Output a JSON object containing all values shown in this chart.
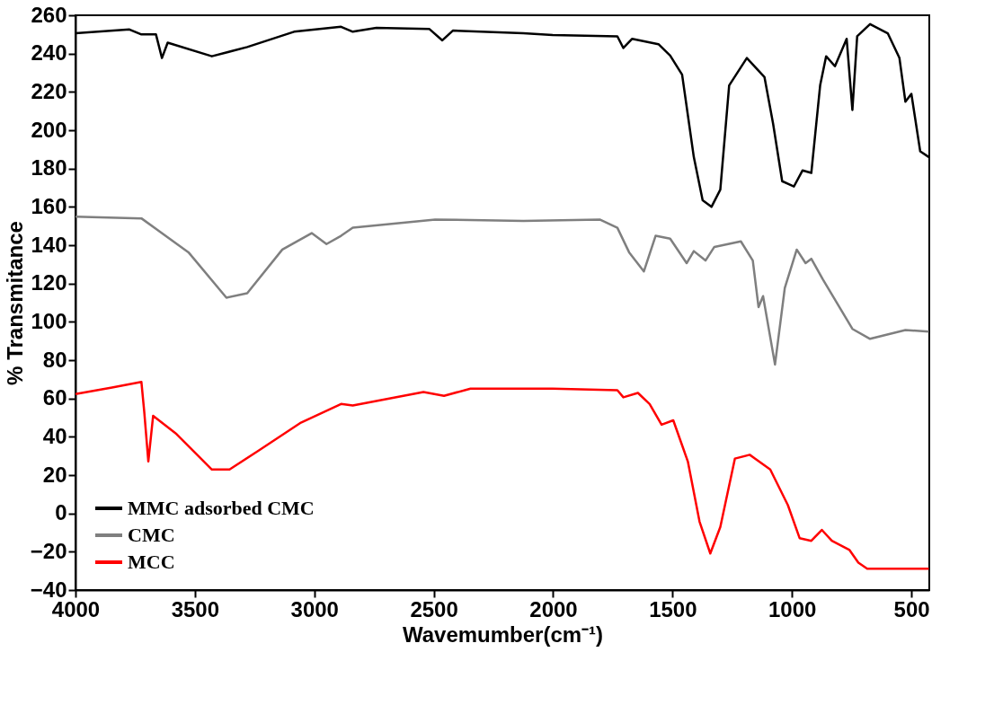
{
  "chart_data": {
    "type": "line",
    "xlabel": "Wavemumber(cm⁻¹)",
    "ylabel": "% Transmitance",
    "xlim": [
      4000,
      425
    ],
    "xticks": [
      4000,
      3500,
      3000,
      2500,
      2000,
      1500,
      1000,
      500
    ],
    "ylim": [
      -40,
      260
    ],
    "yticks": [
      -40,
      -20,
      0,
      20,
      40,
      60,
      80,
      100,
      120,
      140,
      160,
      180,
      200,
      220,
      240,
      260
    ],
    "grid": false,
    "legend": "bottom left",
    "line_style": "solid",
    "marker": "none",
    "series": [
      {
        "name": "MMC adsorbed CMC",
        "color": "#000000",
        "x": [
          4000,
          3774,
          3724,
          3663,
          3638,
          3614,
          3429,
          3281,
          3085,
          2888,
          2839,
          2740,
          2519,
          2464,
          2420,
          2125,
          2002,
          1731,
          1706,
          1669,
          1559,
          1510,
          1460,
          1411,
          1374,
          1337,
          1300,
          1263,
          1189,
          1115,
          1079,
          1041,
          1017,
          992,
          956,
          919,
          882,
          857,
          820,
          771,
          747,
          727,
          673,
          599,
          550,
          525,
          500,
          463,
          427
        ],
        "values": [
          250.6,
          252.6,
          250,
          250,
          237.7,
          245.7,
          238.6,
          243.4,
          251.4,
          254,
          251.4,
          253.4,
          252.9,
          246.9,
          252,
          250.6,
          249.7,
          249,
          242.9,
          247.7,
          244.9,
          239,
          229,
          186,
          163.4,
          160,
          169,
          223.4,
          237.7,
          227.7,
          203.4,
          173.4,
          172,
          170.6,
          179,
          177.7,
          223.4,
          238.6,
          233.4,
          247.7,
          210.6,
          249,
          255.4,
          250.6,
          237.7,
          214.9,
          219,
          189,
          186
        ]
      },
      {
        "name": "CMC",
        "color": "#7f7f7f",
        "x": [
          4000,
          3724,
          3527,
          3368,
          3281,
          3134,
          3011,
          2949,
          2888,
          2839,
          2494,
          2125,
          1805,
          1731,
          1682,
          1620,
          1571,
          1510,
          1441,
          1411,
          1362,
          1325,
          1214,
          1164,
          1140,
          1121,
          1071,
          1030,
          980,
          943,
          919,
          870,
          747,
          673,
          525,
          427
        ],
        "values": [
          154.9,
          154,
          136.3,
          112.6,
          114.9,
          137.7,
          146.3,
          140.6,
          144.9,
          149.1,
          153.4,
          152.6,
          153.4,
          149.1,
          136.3,
          126.3,
          144.9,
          143.4,
          130.6,
          136.9,
          132,
          139.1,
          142,
          132,
          107.7,
          113.4,
          77.7,
          117.7,
          137.7,
          130.6,
          132.9,
          122,
          96.3,
          91.1,
          95.7,
          94.9
        ]
      },
      {
        "name": "MCC",
        "color": "#ff0000",
        "x": [
          4000,
          3847,
          3724,
          3712,
          3695,
          3675,
          3577,
          3429,
          3355,
          3232,
          3060,
          2888,
          2839,
          2543,
          2457,
          2346,
          2002,
          1731,
          1706,
          1645,
          1596,
          1546,
          1497,
          1436,
          1387,
          1342,
          1300,
          1239,
          1177,
          1091,
          1017,
          968,
          919,
          875,
          833,
          759,
          722,
          685,
          427
        ],
        "values": [
          62.3,
          65.7,
          68.6,
          52.9,
          27.1,
          50.9,
          41.4,
          22.9,
          22.9,
          32.9,
          47.1,
          57.1,
          56.3,
          63.4,
          61.4,
          65.1,
          65.1,
          64.3,
          60.6,
          62.9,
          57.1,
          46.3,
          48.6,
          27.1,
          -4.3,
          -20.9,
          -7.1,
          28.6,
          30.6,
          22.9,
          4.3,
          -12.9,
          -14.3,
          -8.6,
          -14.3,
          -19.1,
          -25.7,
          -28.9,
          -28.9
        ]
      }
    ]
  }
}
